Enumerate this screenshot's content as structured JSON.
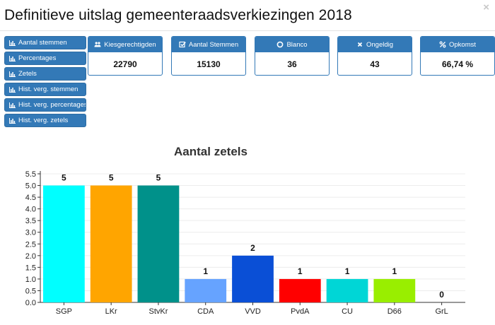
{
  "header": {
    "title": "Definitieve uitslag gemeenteraadsverkiezingen 2018",
    "close_glyph": "×"
  },
  "sidebar": {
    "items": [
      {
        "label": "Aantal stemmen",
        "icon": "bar-chart-icon"
      },
      {
        "label": "Percentages",
        "icon": "bar-chart-icon"
      },
      {
        "label": "Zetels",
        "icon": "bar-chart-icon"
      },
      {
        "label": "Hist. verg. stemmen",
        "icon": "bar-chart-icon"
      },
      {
        "label": "Hist. verg. percentages",
        "icon": "bar-chart-icon"
      },
      {
        "label": "Hist. verg. zetels",
        "icon": "bar-chart-icon"
      }
    ]
  },
  "stats": [
    {
      "label": "Kiesgerechtigden",
      "value": "22790",
      "icon": "users-icon"
    },
    {
      "label": "Aantal Stemmen",
      "value": "15130",
      "icon": "check-square-icon"
    },
    {
      "label": "Blanco",
      "value": "36",
      "icon": "circle-icon"
    },
    {
      "label": "Ongeldig",
      "value": "43",
      "icon": "times-icon"
    },
    {
      "label": "Opkomst",
      "value": "66,74 %",
      "icon": "percent-icon"
    }
  ],
  "colors": {
    "primary": "#3379b7"
  },
  "chart_data": {
    "type": "bar",
    "title": "Aantal zetels",
    "categories": [
      "SGP",
      "LKr",
      "StvKr",
      "CDA",
      "VVD",
      "PvdA",
      "CU",
      "D66",
      "GrL"
    ],
    "values": [
      5,
      5,
      5,
      1,
      2,
      1,
      1,
      1,
      0
    ],
    "colors": [
      "#00ffff",
      "#ffa500",
      "#00918a",
      "#66a3ff",
      "#0a4fd6",
      "#ff0000",
      "#00d6d6",
      "#99ee00",
      "#999999"
    ],
    "yticks": [
      "0.0",
      "0.5",
      "1.0",
      "1.5",
      "2.0",
      "2.5",
      "3.0",
      "3.5",
      "4.0",
      "4.5",
      "5.0",
      "5.5"
    ],
    "ylim": [
      0,
      5.5
    ],
    "grid": true,
    "xlabel": "",
    "ylabel": ""
  }
}
